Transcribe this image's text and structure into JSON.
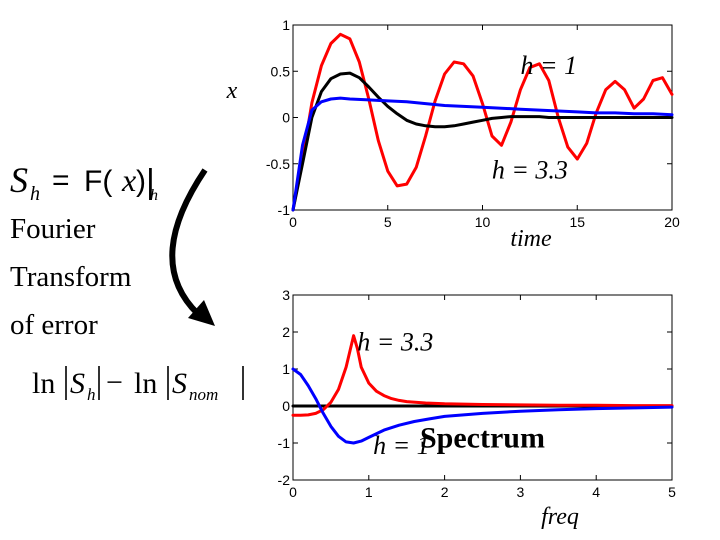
{
  "left_text": {
    "formula_top": {
      "S": "S",
      "sub_h": "h",
      "eq": "=",
      "F": "F(",
      "x": "x",
      "close": ")",
      "bar": "|",
      "bar_sub": "h"
    },
    "caption_lines": [
      "Fourier",
      "Transform",
      "of error"
    ],
    "formula_bottom": {
      "ln1": "ln",
      "S1": "S",
      "sub1": "h",
      "minus": "−",
      "ln2": "ln",
      "S2": "S",
      "sub2": "nom"
    }
  },
  "chart_data": [
    {
      "type": "line",
      "xlabel": "time",
      "ylabel": "x",
      "xlim": [
        0,
        20
      ],
      "ylim": [
        -1,
        1
      ],
      "xticks": [
        "0",
        "5",
        "10",
        "15",
        "20"
      ],
      "yticks": [
        "1",
        "0.5",
        "0",
        "-0.5",
        "-1"
      ],
      "grid": false,
      "annotations": [
        {
          "text": "h = 1",
          "x": 13.5,
          "y": 0.47
        },
        {
          "text": "h = 3.3",
          "x": 12.5,
          "y": -0.66
        }
      ],
      "series": [
        {
          "color": "#ff0000",
          "x": [
            0,
            0.5,
            1,
            1.5,
            2,
            2.5,
            3,
            3.5,
            4,
            4.5,
            5,
            5.5,
            6,
            6.5,
            7,
            7.5,
            8,
            8.5,
            9,
            9.5,
            10,
            10.5,
            11,
            11.5,
            12,
            12.5,
            13,
            13.5,
            14,
            14.5,
            15,
            15.5,
            16,
            16.5,
            17,
            17.5,
            18,
            18.5,
            19,
            19.5,
            20
          ],
          "y": [
            -1,
            -0.45,
            0.16,
            0.56,
            0.8,
            0.9,
            0.85,
            0.6,
            0.2,
            -0.25,
            -0.58,
            -0.74,
            -0.72,
            -0.54,
            -0.2,
            0.18,
            0.47,
            0.6,
            0.58,
            0.45,
            0.15,
            -0.2,
            -0.3,
            -0.05,
            0.3,
            0.54,
            0.58,
            0.4,
            0.0,
            -0.32,
            -0.45,
            -0.28,
            0.05,
            0.3,
            0.39,
            0.3,
            0.1,
            0.2,
            0.4,
            0.43,
            0.25
          ]
        },
        {
          "color": "#000000",
          "x": [
            0,
            0.5,
            1,
            1.5,
            2,
            2.5,
            3,
            3.5,
            4,
            4.5,
            5,
            5.5,
            6,
            6.5,
            7,
            7.5,
            8,
            8.5,
            9,
            9.5,
            10,
            10.5,
            11,
            11.5,
            12,
            12.5,
            13,
            13.5,
            14,
            15,
            16,
            17,
            18,
            19,
            20
          ],
          "y": [
            -1,
            -0.5,
            0.0,
            0.28,
            0.42,
            0.47,
            0.48,
            0.43,
            0.33,
            0.22,
            0.12,
            0.04,
            -0.03,
            -0.07,
            -0.09,
            -0.1,
            -0.1,
            -0.09,
            -0.07,
            -0.05,
            -0.03,
            -0.01,
            0.0,
            0.01,
            0.01,
            0.01,
            0.01,
            0.0,
            0.0,
            0.0,
            0.0,
            0.0,
            0.0,
            0.0,
            0.0
          ]
        },
        {
          "color": "#0000ff",
          "x": [
            0,
            0.5,
            1,
            1.5,
            2,
            2.5,
            3,
            4,
            5,
            6,
            7,
            8,
            9,
            10,
            11,
            12,
            13,
            14,
            15,
            16,
            17,
            18,
            19,
            20
          ],
          "y": [
            -1,
            -0.3,
            0.08,
            0.17,
            0.2,
            0.21,
            0.2,
            0.19,
            0.18,
            0.17,
            0.15,
            0.13,
            0.12,
            0.11,
            0.1,
            0.09,
            0.08,
            0.07,
            0.06,
            0.05,
            0.05,
            0.04,
            0.04,
            0.03
          ]
        }
      ]
    },
    {
      "type": "line",
      "xlabel": "freq",
      "xlim": [
        0,
        5
      ],
      "ylim": [
        -2,
        3
      ],
      "xticks": [
        "0",
        "1",
        "2",
        "3",
        "4",
        "5"
      ],
      "yticks": [
        "3",
        "2",
        "1",
        "0",
        "-1",
        "-2"
      ],
      "grid": false,
      "annotations": [
        {
          "text": "h = 3.3",
          "x": 1.35,
          "y": 1.5
        },
        {
          "text": "h = 1",
          "x": 1.43,
          "y": -1.3
        },
        {
          "text": "Spectrum",
          "x": 2.5,
          "y": -1.12,
          "color": "#0000ff"
        }
      ],
      "series": [
        {
          "color": "#000000",
          "x": [
            0,
            5
          ],
          "y": [
            0,
            0
          ]
        },
        {
          "color": "#ff0000",
          "x": [
            0,
            0.1,
            0.2,
            0.3,
            0.4,
            0.5,
            0.6,
            0.7,
            0.8,
            0.85,
            0.9,
            1.0,
            1.1,
            1.2,
            1.3,
            1.4,
            1.5,
            1.75,
            2,
            2.5,
            3,
            3.5,
            4,
            4.5,
            5
          ],
          "y": [
            -0.25,
            -0.25,
            -0.24,
            -0.2,
            -0.1,
            0.1,
            0.45,
            1.05,
            1.9,
            1.55,
            1.05,
            0.62,
            0.4,
            0.28,
            0.2,
            0.15,
            0.12,
            0.08,
            0.06,
            0.04,
            0.03,
            0.02,
            0.02,
            0.01,
            0.01
          ]
        },
        {
          "color": "#0000ff",
          "x": [
            0,
            0.1,
            0.2,
            0.3,
            0.4,
            0.5,
            0.6,
            0.7,
            0.8,
            0.9,
            1.0,
            1.2,
            1.4,
            1.6,
            1.8,
            2.0,
            2.5,
            3,
            3.5,
            4,
            4.5,
            5
          ],
          "y": [
            1.0,
            0.85,
            0.55,
            0.2,
            -0.2,
            -0.55,
            -0.82,
            -0.97,
            -1.0,
            -0.95,
            -0.85,
            -0.65,
            -0.52,
            -0.42,
            -0.35,
            -0.28,
            -0.2,
            -0.14,
            -0.1,
            -0.07,
            -0.05,
            -0.03
          ]
        }
      ]
    }
  ]
}
